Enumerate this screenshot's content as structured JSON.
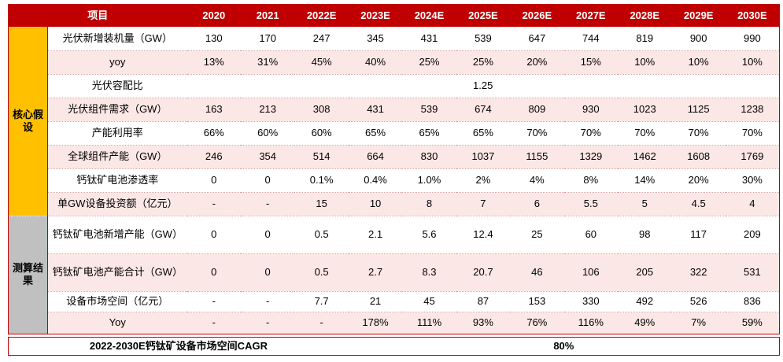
{
  "table": {
    "header": [
      "项目",
      "2020",
      "2021",
      "2022E",
      "2023E",
      "2024E",
      "2025E",
      "2026E",
      "2027E",
      "2028E",
      "2029E",
      "2030E"
    ],
    "groups": [
      {
        "label": "核心假设",
        "rows": [
          {
            "label": "光伏新增装机量（GW）",
            "values": [
              "130",
              "170",
              "247",
              "345",
              "431",
              "539",
              "647",
              "744",
              "819",
              "900",
              "990"
            ]
          },
          {
            "label": "yoy",
            "values": [
              "13%",
              "31%",
              "45%",
              "40%",
              "25%",
              "25%",
              "20%",
              "15%",
              "10%",
              "10%",
              "10%"
            ]
          },
          {
            "label": "光伏容配比",
            "merged": "1.25"
          },
          {
            "label": "光伏组件需求（GW）",
            "values": [
              "163",
              "213",
              "308",
              "431",
              "539",
              "674",
              "809",
              "930",
              "1023",
              "1125",
              "1238"
            ]
          },
          {
            "label": "产能利用率",
            "values": [
              "66%",
              "60%",
              "60%",
              "65%",
              "65%",
              "65%",
              "70%",
              "70%",
              "70%",
              "70%",
              "70%"
            ]
          },
          {
            "label": "全球组件产能（GW）",
            "values": [
              "246",
              "354",
              "514",
              "664",
              "830",
              "1037",
              "1155",
              "1329",
              "1462",
              "1608",
              "1769"
            ]
          },
          {
            "label": "钙钛矿电池渗透率",
            "values": [
              "0",
              "0",
              "0.1%",
              "0.4%",
              "1.0%",
              "2%",
              "4%",
              "8%",
              "14%",
              "20%",
              "30%"
            ]
          },
          {
            "label": "单GW设备投资额（亿元）",
            "values": [
              "-",
              "-",
              "15",
              "10",
              "8",
              "7",
              "6",
              "5.5",
              "5",
              "4.5",
              "4"
            ]
          }
        ]
      },
      {
        "label": "测算结果",
        "rows": [
          {
            "label": "钙钛矿电池新增产能（GW）",
            "values": [
              "0",
              "0",
              "0.5",
              "2.1",
              "5.6",
              "12.4",
              "25",
              "60",
              "98",
              "117",
              "209"
            ]
          },
          {
            "label": "钙钛矿电池产能合计（GW）",
            "values": [
              "0",
              "0",
              "0.5",
              "2.7",
              "8.3",
              "20.7",
              "46",
              "106",
              "205",
              "322",
              "531"
            ]
          },
          {
            "label": "设备市场空间（亿元）",
            "values": [
              "-",
              "-",
              "7.7",
              "21",
              "45",
              "87",
              "153",
              "330",
              "492",
              "526",
              "836"
            ]
          },
          {
            "label": "Yoy",
            "values": [
              "-",
              "-",
              "-",
              "178%",
              "111%",
              "93%",
              "76%",
              "116%",
              "49%",
              "7%",
              "59%"
            ]
          }
        ]
      }
    ],
    "cagr": {
      "label": "2022-2030E钙钛矿设备市场空间CAGR",
      "value": "80%"
    }
  }
}
